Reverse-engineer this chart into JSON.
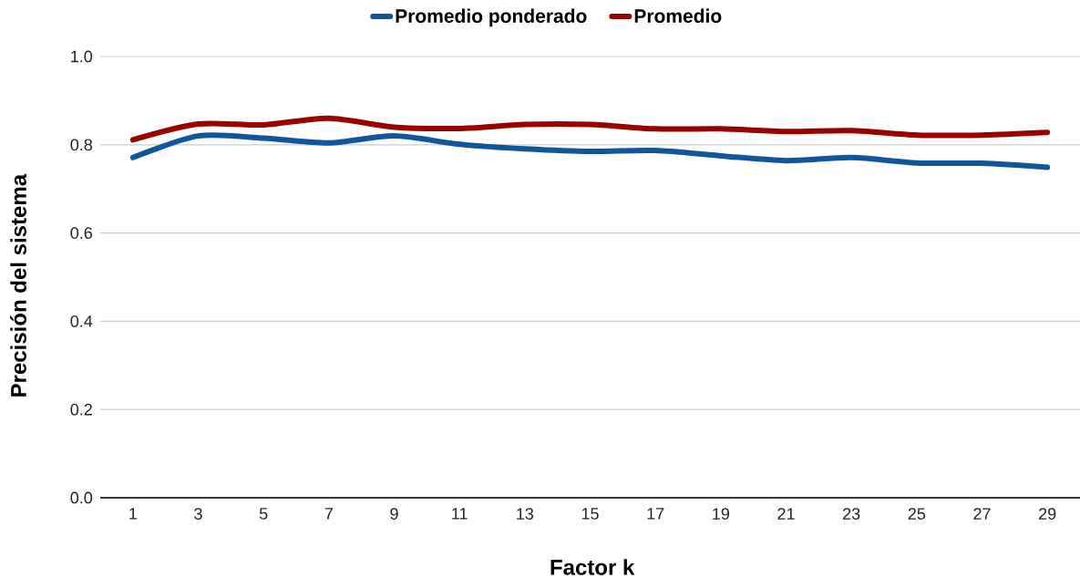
{
  "chart_data": {
    "type": "line",
    "xlabel": "Factor k",
    "ylabel": "Precisión del sistema",
    "categories": [
      "1",
      "3",
      "5",
      "7",
      "9",
      "11",
      "13",
      "15",
      "17",
      "19",
      "21",
      "23",
      "25",
      "27",
      "29"
    ],
    "series": [
      {
        "name": "Promedio ponderado",
        "color": "#11559a",
        "values": [
          0.771,
          0.82,
          0.815,
          0.804,
          0.82,
          0.801,
          0.791,
          0.785,
          0.787,
          0.775,
          0.764,
          0.771,
          0.759,
          0.758,
          0.749
        ]
      },
      {
        "name": "Promedio",
        "color": "#990000",
        "values": [
          0.811,
          0.847,
          0.845,
          0.86,
          0.84,
          0.837,
          0.846,
          0.846,
          0.836,
          0.836,
          0.83,
          0.832,
          0.822,
          0.822,
          0.828
        ]
      }
    ],
    "ylim": [
      0,
      1
    ],
    "yticks": [
      {
        "value": 0,
        "label": "0.0"
      },
      0.2,
      0.4,
      0.6,
      0.8,
      {
        "value": 1,
        "label": "1.0"
      }
    ],
    "grid": "y",
    "legend": "top",
    "marker": "none",
    "line_style": "solid"
  }
}
